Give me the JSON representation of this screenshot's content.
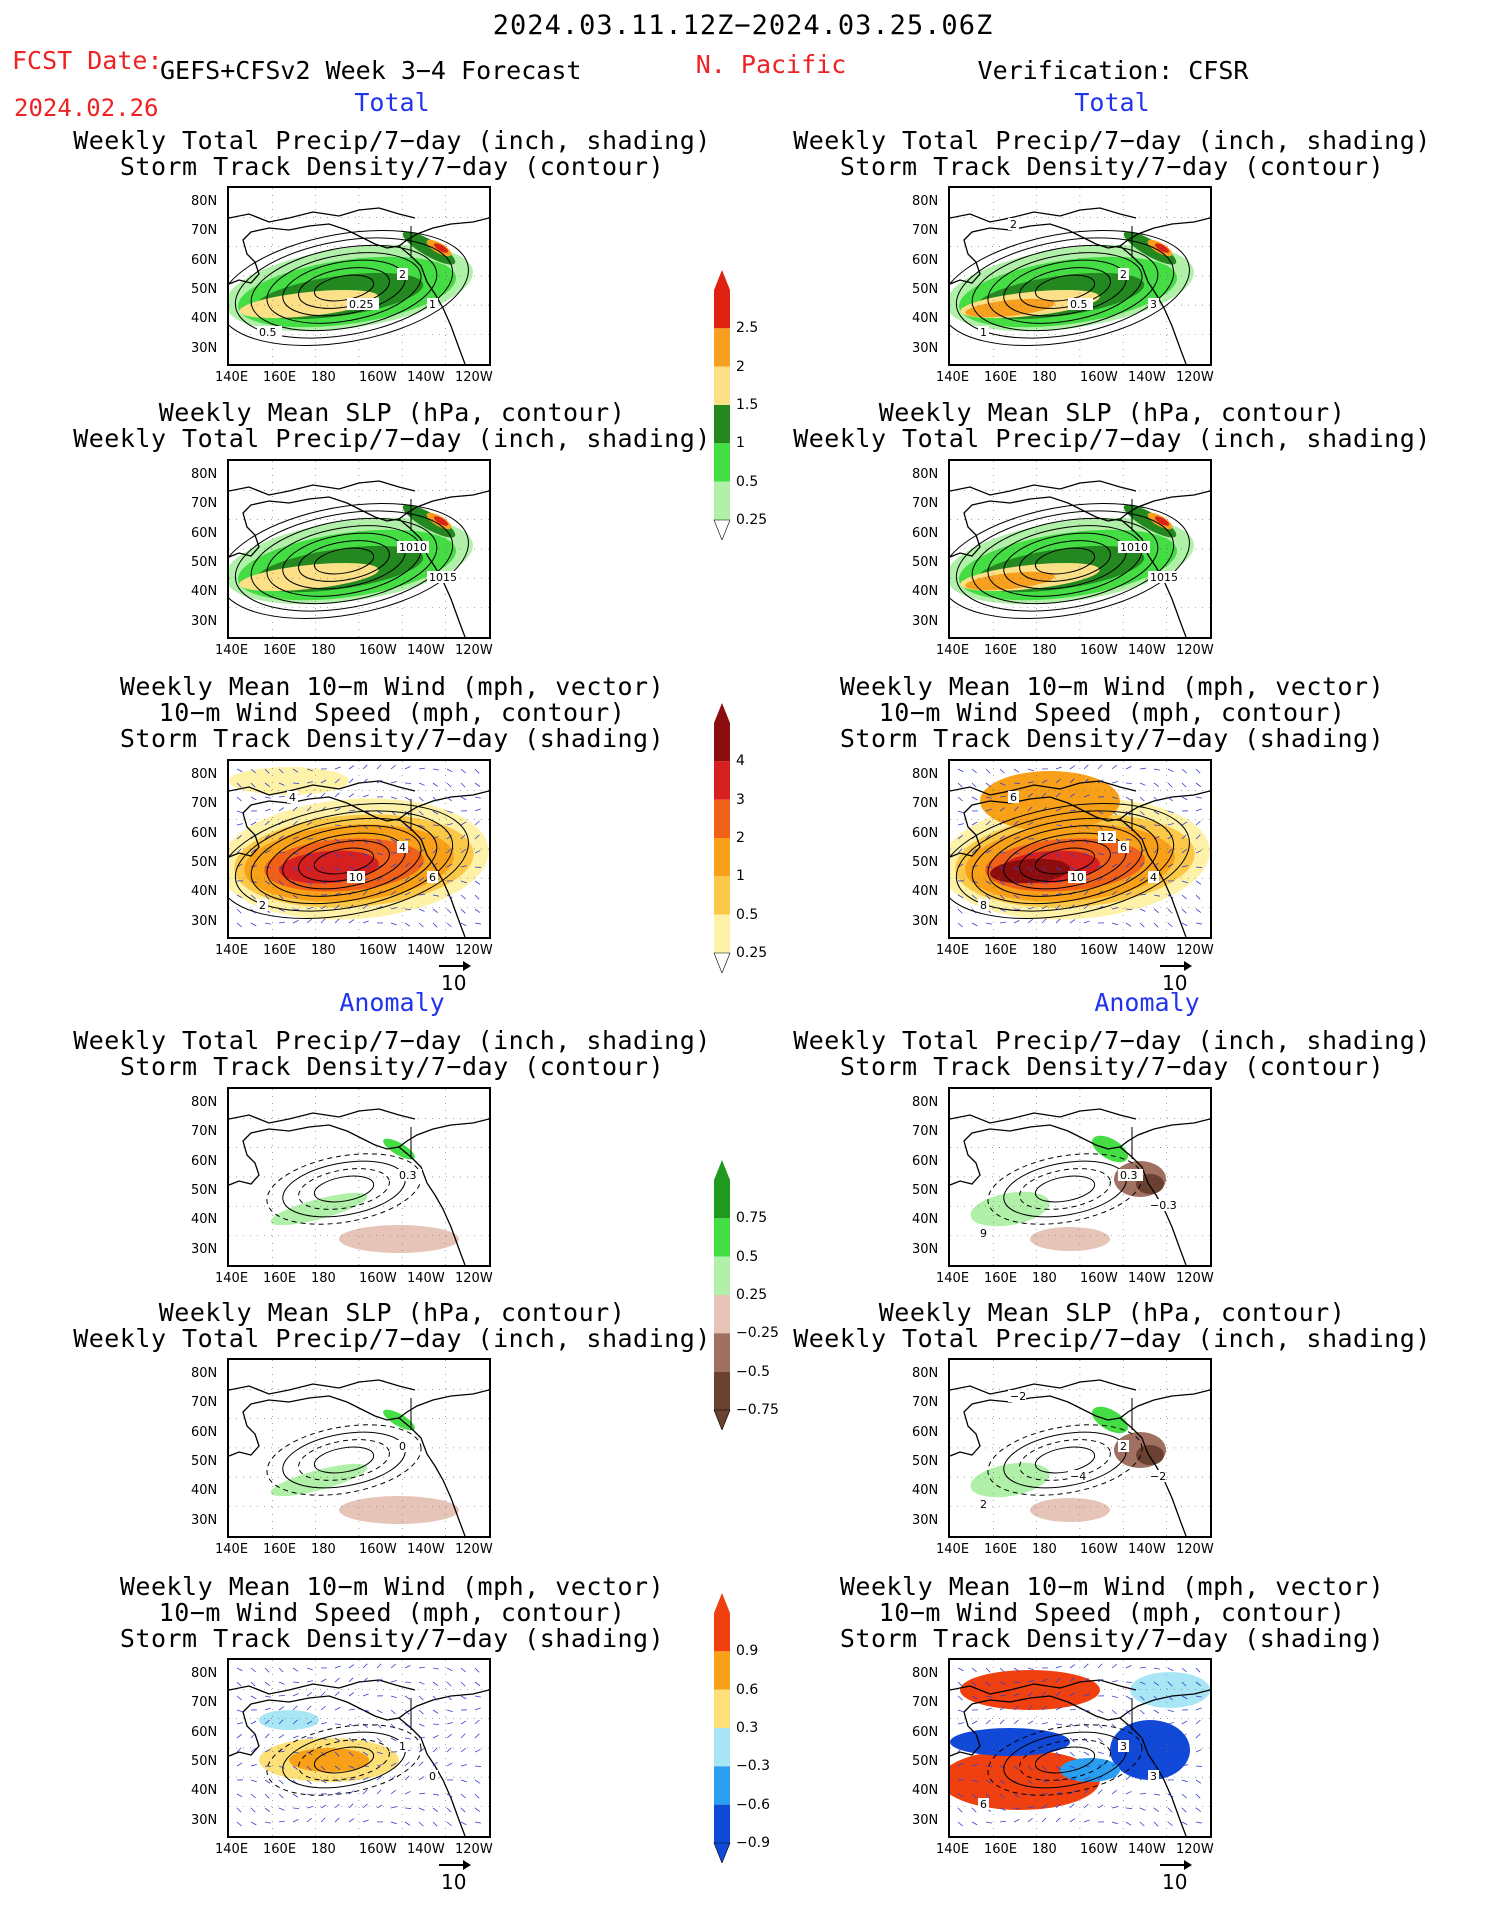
{
  "header": {
    "period": "2024.03.11.12Z−2024.03.25.06Z",
    "fcst_label": "FCST Date:",
    "model": "GEFS+CFSv2 Week 3−4 Forecast",
    "fcst_date": "2024.02.26",
    "region": "N. Pacific",
    "verification": "Verification: CFSR"
  },
  "sections": {
    "total": "Total",
    "anomaly": "Anomaly"
  },
  "panel_titles": {
    "precip_storm": [
      "Weekly Total Precip/7−day (inch, shading)",
      "Storm Track Density/7−day (contour)"
    ],
    "slp_precip": [
      "Weekly Mean SLP (hPa, contour)",
      "Weekly Total Precip/7−day (inch, shading)"
    ],
    "wind_storm": [
      "Weekly Mean 10−m Wind (mph, vector)",
      "10−m Wind Speed (mph, contour)",
      "Storm Track Density/7−day (shading)"
    ]
  },
  "axes": {
    "lat_ticks": [
      "80N",
      "70N",
      "60N",
      "50N",
      "40N",
      "30N"
    ],
    "lon_ticks": [
      "140E",
      "160E",
      "180",
      "160W",
      "140W",
      "120W"
    ]
  },
  "vector_ref": "10",
  "colorbars": {
    "precip_total": {
      "labels": [
        "2.5",
        "2",
        "1.5",
        "1",
        "0.5",
        "0.25"
      ],
      "colors": [
        "#dd2211",
        "#f7a020",
        "#fbe088",
        "#22881f",
        "#44dd44",
        "#b0f0a8"
      ]
    },
    "storm_total": {
      "labels": [
        "4",
        "3",
        "2",
        "1",
        "0.5",
        "0.25"
      ],
      "colors": [
        "#8b0d0d",
        "#d61f1f",
        "#f06018",
        "#f8a018",
        "#fbc848",
        "#fdf2a8"
      ]
    },
    "precip_anom": {
      "labels": [
        "0.75",
        "0.5",
        "0.25",
        "−0.25",
        "−0.5",
        "−0.75"
      ],
      "colors": [
        "#1f9a1f",
        "#44dd44",
        "#b0f0a8",
        "#e6c4b8",
        "#a07060",
        "#6a4030"
      ]
    },
    "storm_anom": {
      "labels": [
        "0.9",
        "0.6",
        "0.3",
        "−0.3",
        "−0.6",
        "−0.9"
      ],
      "colors": [
        "#f04010",
        "#f8a018",
        "#fde078",
        "#a8e6f6",
        "#2a9ef0",
        "#1048d8"
      ]
    }
  },
  "contour_labels": {
    "p1": [
      "2",
      "1",
      "0.5",
      "0.25"
    ],
    "p2": [
      "2",
      "3",
      "1",
      "0.5",
      "2"
    ],
    "p3": [
      "1010",
      "1015"
    ],
    "p4": [
      "1010",
      "1015"
    ],
    "p5": [
      "4",
      "6",
      "2",
      "10",
      "4"
    ],
    "p6": [
      "6",
      "4",
      "8",
      "10",
      "6",
      "12"
    ],
    "p7": [
      "0.3"
    ],
    "p8": [
      "0.3",
      "−0.3",
      "9"
    ],
    "p9": [
      "0"
    ],
    "p10": [
      "2",
      "−2",
      "2",
      "−4",
      "−2"
    ],
    "p11": [
      "1",
      "0"
    ],
    "p12": [
      "3",
      "3",
      "6"
    ]
  }
}
